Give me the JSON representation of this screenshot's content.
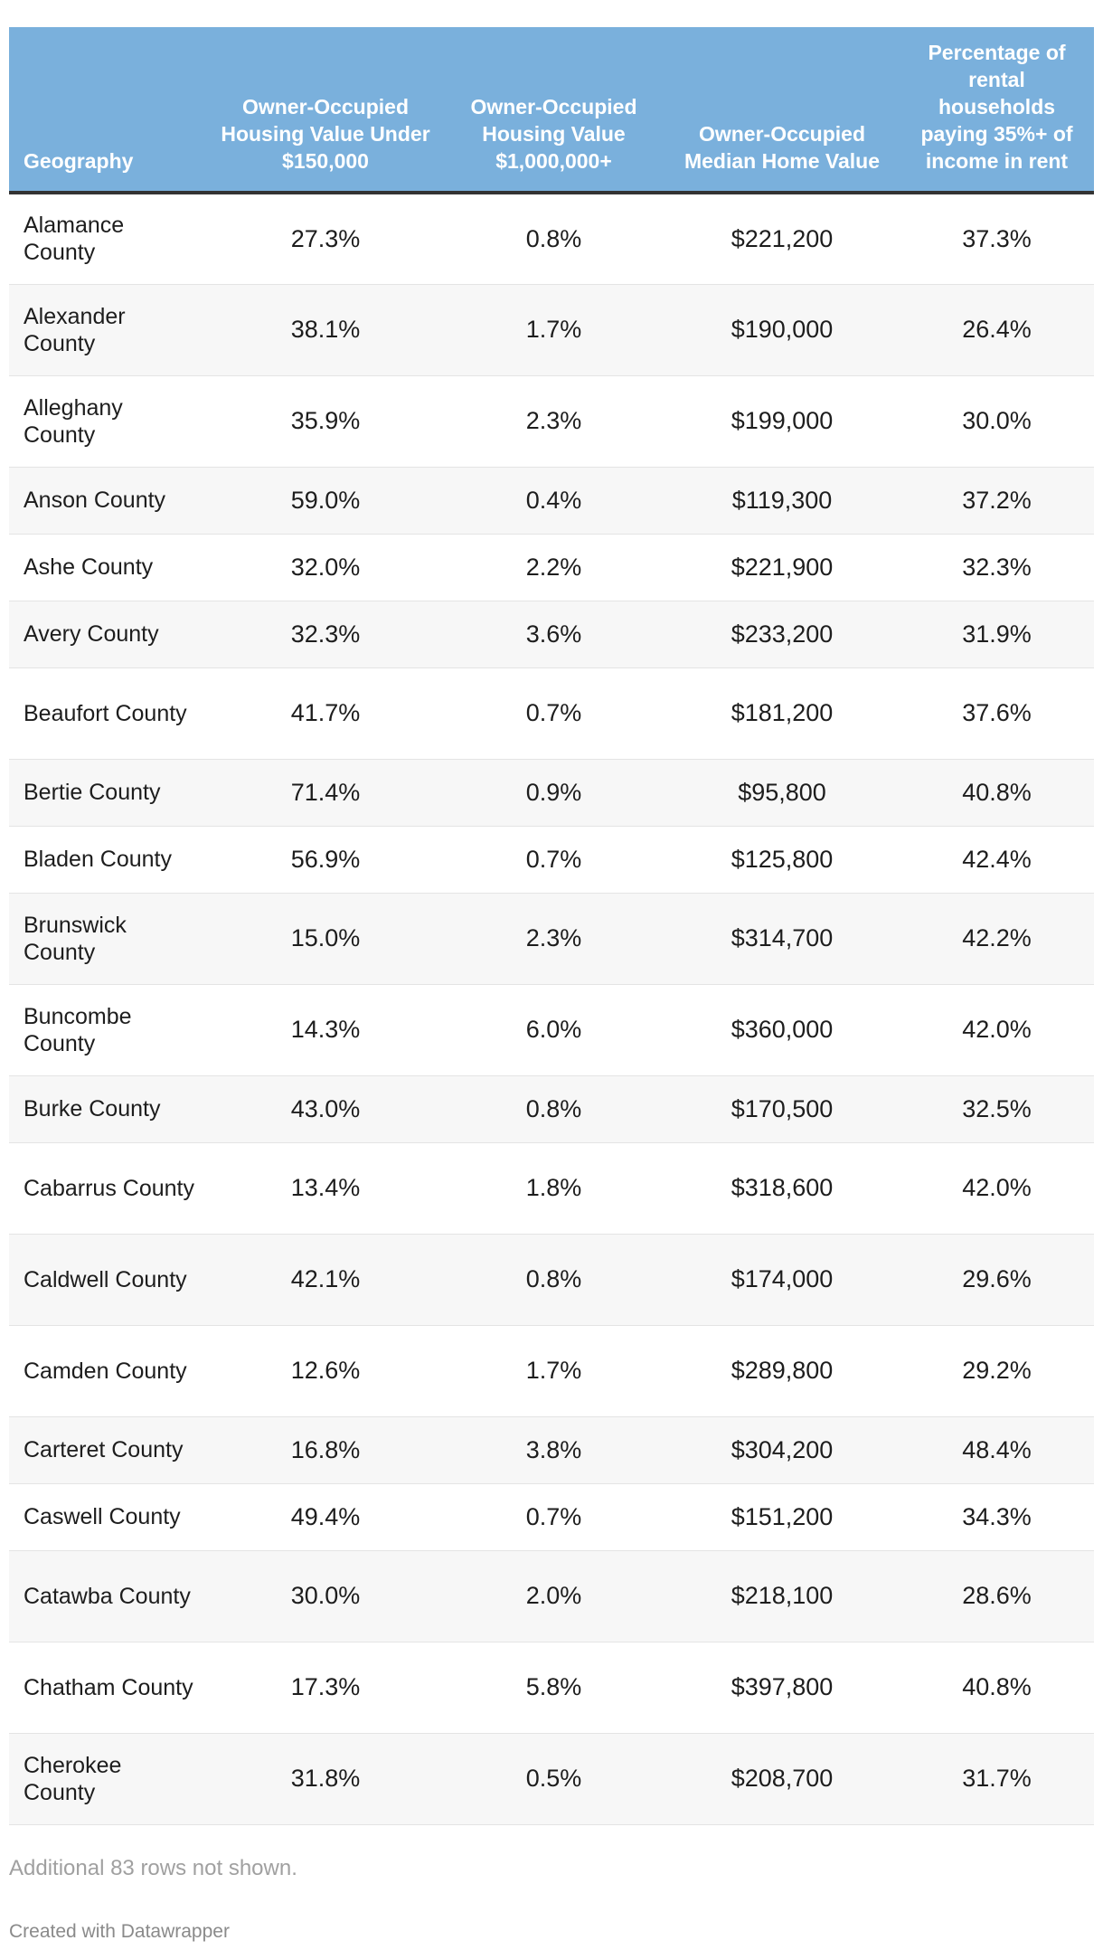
{
  "table": {
    "headers": [
      "Geography",
      "Owner-Occupied Housing Value Under $150,000",
      "Owner-Occupied Housing Value $1,000,000+",
      "Owner-Occupied Median Home Value",
      "Percentage of rental households paying 35%+ of income in rent"
    ],
    "rows": [
      [
        "Alamance County",
        "27.3%",
        "0.8%",
        "$221,200",
        "37.3%"
      ],
      [
        "Alexander County",
        "38.1%",
        "1.7%",
        "$190,000",
        "26.4%"
      ],
      [
        "Alleghany County",
        "35.9%",
        "2.3%",
        "$199,000",
        "30.0%"
      ],
      [
        "Anson County",
        "59.0%",
        "0.4%",
        "$119,300",
        "37.2%"
      ],
      [
        "Ashe County",
        "32.0%",
        "2.2%",
        "$221,900",
        "32.3%"
      ],
      [
        "Avery County",
        "32.3%",
        "3.6%",
        "$233,200",
        "31.9%"
      ],
      [
        "Beaufort County",
        "41.7%",
        "0.7%",
        "$181,200",
        "37.6%"
      ],
      [
        "Bertie County",
        "71.4%",
        "0.9%",
        "$95,800",
        "40.8%"
      ],
      [
        "Bladen County",
        "56.9%",
        "0.7%",
        "$125,800",
        "42.4%"
      ],
      [
        "Brunswick County",
        "15.0%",
        "2.3%",
        "$314,700",
        "42.2%"
      ],
      [
        "Buncombe County",
        "14.3%",
        "6.0%",
        "$360,000",
        "42.0%"
      ],
      [
        "Burke County",
        "43.0%",
        "0.8%",
        "$170,500",
        "32.5%"
      ],
      [
        "Cabarrus County",
        "13.4%",
        "1.8%",
        "$318,600",
        "42.0%"
      ],
      [
        "Caldwell County",
        "42.1%",
        "0.8%",
        "$174,000",
        "29.6%"
      ],
      [
        "Camden County",
        "12.6%",
        "1.7%",
        "$289,800",
        "29.2%"
      ],
      [
        "Carteret County",
        "16.8%",
        "3.8%",
        "$304,200",
        "48.4%"
      ],
      [
        "Caswell County",
        "49.4%",
        "0.7%",
        "$151,200",
        "34.3%"
      ],
      [
        "Catawba County",
        "30.0%",
        "2.0%",
        "$218,100",
        "28.6%"
      ],
      [
        "Chatham County",
        "17.3%",
        "5.8%",
        "$397,800",
        "40.8%"
      ],
      [
        "Cherokee County",
        "31.8%",
        "0.5%",
        "$208,700",
        "31.7%"
      ]
    ]
  },
  "notes": "Additional 83 rows not shown.",
  "credit": "Created with Datawrapper"
}
